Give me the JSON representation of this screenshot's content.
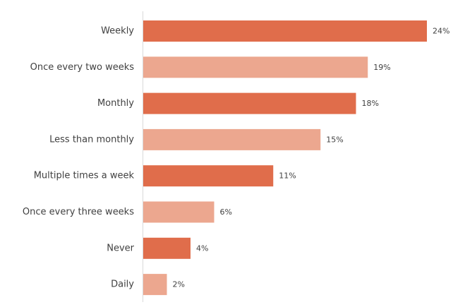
{
  "chart_data": {
    "type": "bar",
    "orientation": "horizontal",
    "categories": [
      "Weekly",
      "Once every two weeks",
      "Monthly",
      "Less than monthly",
      "Multiple times a week",
      "Once every three weeks",
      "Never",
      "Daily"
    ],
    "values": [
      24,
      19,
      18,
      15,
      11,
      6,
      4,
      2
    ],
    "value_labels": [
      "24%",
      "19%",
      "18%",
      "15%",
      "11%",
      "6%",
      "4%",
      "2%"
    ],
    "unit": "%",
    "xlim": [
      0,
      24
    ],
    "grid": false,
    "legend": "none",
    "colors": [
      "#E06D4B",
      "#ECA78F"
    ]
  }
}
